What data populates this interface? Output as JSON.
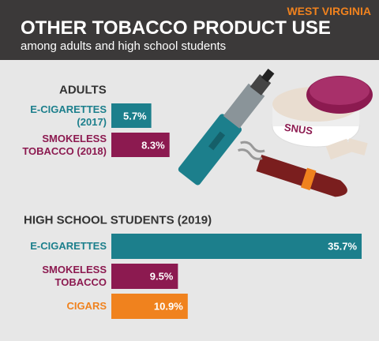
{
  "header": {
    "region": "WEST VIRGINIA",
    "title": "OTHER TOBACCO PRODUCT USE",
    "subtitle": "among adults and high school students"
  },
  "chart_data": [
    {
      "type": "bar",
      "title": "ADULTS",
      "categories": [
        "E-CIGARETTES\n(2017)",
        "SMOKELESS\nTOBACCO (2018)"
      ],
      "values": [
        5.7,
        8.3
      ],
      "value_labels": [
        "5.7%",
        "8.3%"
      ],
      "colors": [
        "#1c7f8c",
        "#8c1a50"
      ]
    },
    {
      "type": "bar",
      "title": "HIGH SCHOOL STUDENTS (2019)",
      "categories": [
        "E-CIGARETTES",
        "SMOKELESS\nTOBACCO",
        "CIGARS"
      ],
      "values": [
        35.7,
        9.5,
        10.9
      ],
      "value_labels": [
        "35.7%",
        "9.5%",
        "10.9%"
      ],
      "colors": [
        "#1c7f8c",
        "#8c1a50",
        "#f0821e"
      ]
    }
  ],
  "illustration": {
    "snus_label": "SNUS"
  }
}
